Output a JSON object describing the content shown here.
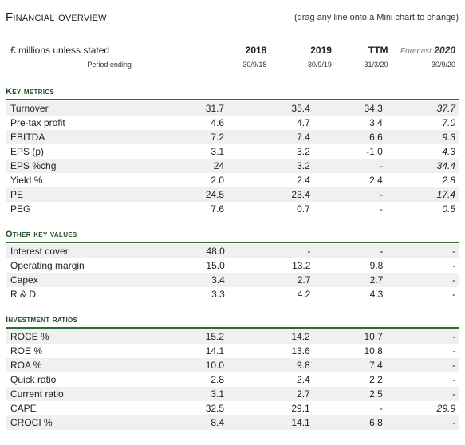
{
  "header": {
    "title": "Financial overview",
    "hint": "(drag any line onto a Mini chart to change)"
  },
  "columns": {
    "label": "£ millions unless stated",
    "period_label": "Period ending",
    "c1_year": "2018",
    "c2_year": "2019",
    "c3_year": "TTM",
    "c4_label": "Forecast",
    "c4_year": "2020",
    "c1_date": "30/9/18",
    "c2_date": "30/9/19",
    "c3_date": "31/3/20",
    "c4_date": "30/9/20"
  },
  "sections": [
    {
      "title": "Key metrics",
      "rows": [
        {
          "label": "Turnover",
          "v": [
            "31.7",
            "35.4",
            "34.3",
            "37.7"
          ]
        },
        {
          "label": "Pre-tax profit",
          "v": [
            "4.6",
            "4.7",
            "3.4",
            "7.0"
          ]
        },
        {
          "label": "EBITDA",
          "v": [
            "7.2",
            "7.4",
            "6.6",
            "9.3"
          ]
        },
        {
          "label": "EPS (p)",
          "v": [
            "3.1",
            "3.2",
            "-1.0",
            "4.3"
          ]
        },
        {
          "label": "EPS %chg",
          "v": [
            "24",
            "3.2",
            "-",
            "34.4"
          ]
        },
        {
          "label": "Yield %",
          "v": [
            "2.0",
            "2.4",
            "2.4",
            "2.8"
          ]
        },
        {
          "label": "PE",
          "v": [
            "24.5",
            "23.4",
            "-",
            "17.4"
          ]
        },
        {
          "label": "PEG",
          "v": [
            "7.6",
            "0.7",
            "-",
            "0.5"
          ]
        }
      ]
    },
    {
      "title": "Other key values",
      "rows": [
        {
          "label": "Interest cover",
          "v": [
            "48.0",
            "-",
            "-",
            "-"
          ]
        },
        {
          "label": "Operating margin",
          "v": [
            "15.0",
            "13.2",
            "9.8",
            "-"
          ]
        },
        {
          "label": "Capex",
          "v": [
            "3.4",
            "2.7",
            "2.7",
            "-"
          ]
        },
        {
          "label": "R & D",
          "v": [
            "3.3",
            "4.2",
            "4.3",
            "-"
          ]
        }
      ]
    },
    {
      "title": "Investment ratios",
      "rows": [
        {
          "label": "ROCE %",
          "v": [
            "15.2",
            "14.2",
            "10.7",
            "-"
          ]
        },
        {
          "label": "ROE %",
          "v": [
            "14.1",
            "13.6",
            "10.8",
            "-"
          ]
        },
        {
          "label": "ROA %",
          "v": [
            "10.0",
            "9.8",
            "7.4",
            "-"
          ]
        },
        {
          "label": "Quick ratio",
          "v": [
            "2.8",
            "2.4",
            "2.2",
            "-"
          ]
        },
        {
          "label": "Current ratio",
          "v": [
            "3.1",
            "2.7",
            "2.5",
            "-"
          ]
        },
        {
          "label": "CAPE",
          "v": [
            "32.5",
            "29.1",
            "-",
            "29.9"
          ]
        },
        {
          "label": "CROCI %",
          "v": [
            "8.4",
            "14.1",
            "6.8",
            "-"
          ]
        }
      ]
    }
  ]
}
